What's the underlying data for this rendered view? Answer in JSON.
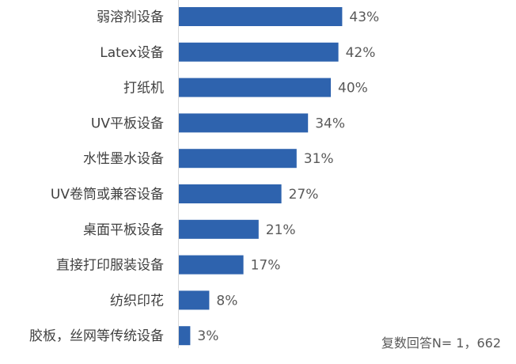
{
  "chart_data": {
    "type": "bar",
    "orientation": "horizontal",
    "categories": [
      "弱溶剂设备",
      "Latex设备",
      "打纸机",
      "UV平板设备",
      "水性墨水设备",
      "UV卷筒或兼容设备",
      "桌面平板设备",
      "直接打印服装设备",
      "纺织印花",
      "胶板，丝网等传统设备"
    ],
    "values": [
      43,
      42,
      40,
      34,
      31,
      27,
      21,
      17,
      8,
      3
    ],
    "value_labels": [
      "43%",
      "42%",
      "40%",
      "34%",
      "31%",
      "27%",
      "21%",
      "17%",
      "8%",
      "3%"
    ],
    "unit": "%",
    "xlim": [
      0,
      100
    ],
    "grid": false,
    "legend": "none",
    "bar_color": "#2E63AE",
    "note": "复数回答N= 1，662"
  }
}
